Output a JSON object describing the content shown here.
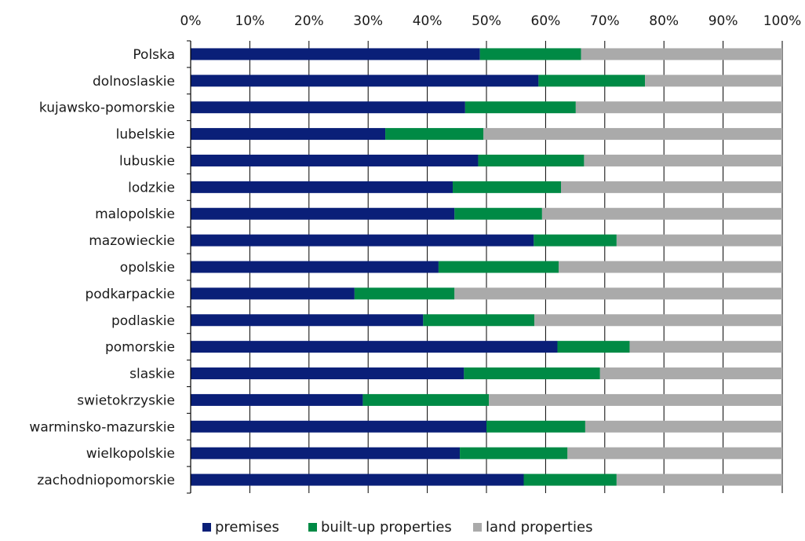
{
  "chart_data": {
    "type": "bar",
    "orientation": "horizontal",
    "stacked": "percent",
    "title": "",
    "xlabel": "",
    "ylabel": "",
    "xlim": [
      0,
      100
    ],
    "x_ticks": [
      "0%",
      "10%",
      "20%",
      "30%",
      "40%",
      "50%",
      "60%",
      "70%",
      "80%",
      "90%",
      "100%"
    ],
    "x_axis_position": "top",
    "grid": "vertical",
    "legend_position": "bottom",
    "categories": [
      "Polska",
      "dolnoslaskie",
      "kujawsko-pomorskie",
      "lubelskie",
      "lubuskie",
      "lodzkie",
      "malopolskie",
      "mazowieckie",
      "opolskie",
      "podkarpackie",
      "podlaskie",
      "pomorskie",
      "slaskie",
      "swietokrzyskie",
      "warminsko-mazurskie",
      "wielkopolskie",
      "zachodniopomorskie"
    ],
    "series": [
      {
        "name": "premises",
        "color": "#0a1f78",
        "values": [
          48.9,
          58.8,
          46.4,
          32.9,
          48.6,
          44.3,
          44.6,
          58.0,
          41.9,
          27.7,
          39.3,
          62.0,
          46.2,
          29.1,
          50.0,
          45.5,
          56.3
        ]
      },
      {
        "name": "built-up properties",
        "color": "#008a45",
        "values": [
          17.1,
          18.0,
          18.7,
          16.6,
          17.9,
          18.3,
          14.8,
          14.0,
          20.3,
          16.9,
          18.8,
          12.2,
          23.0,
          21.3,
          16.7,
          18.2,
          15.7
        ]
      },
      {
        "name": "land properties",
        "color": "#aaaaaa",
        "values": [
          34.0,
          23.2,
          34.9,
          50.5,
          33.5,
          37.4,
          40.6,
          28.0,
          37.8,
          55.4,
          41.9,
          25.8,
          30.8,
          49.6,
          33.3,
          36.3,
          28.0
        ]
      }
    ]
  }
}
